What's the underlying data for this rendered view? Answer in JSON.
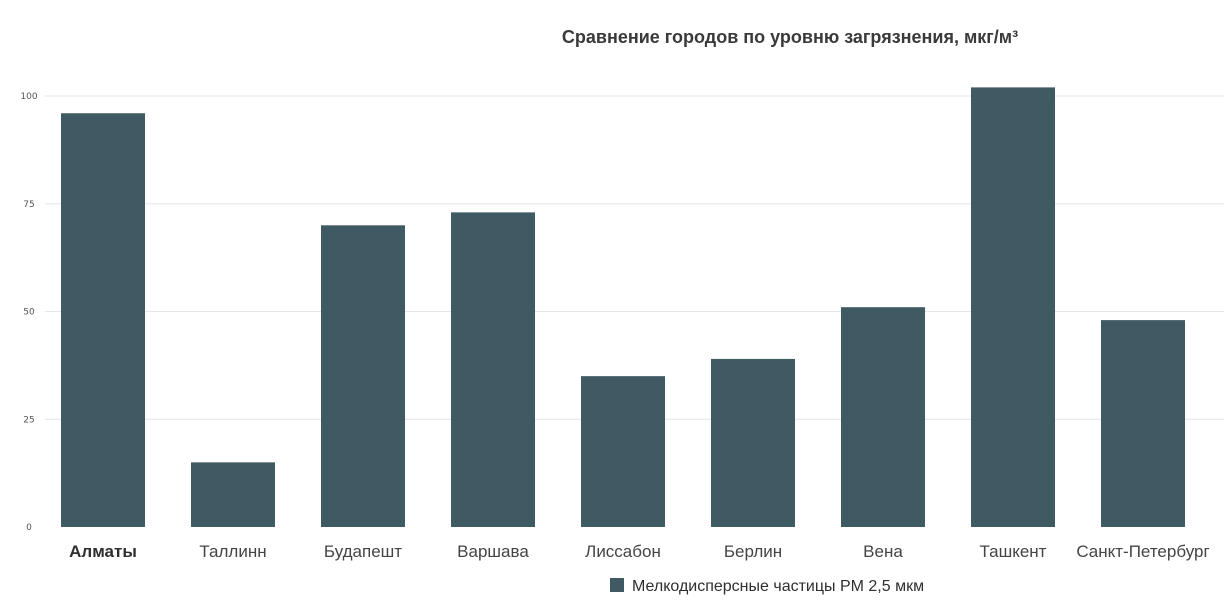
{
  "chart_data": {
    "type": "bar",
    "title": "Сравнение городов по уровню загрязнения, мкг/м³",
    "categories": [
      "Алматы",
      "Таллинн",
      "Будапешт",
      "Варшава",
      "Лиссабон",
      "Берлин",
      "Вена",
      "Ташкент",
      "Санкт-Петербург"
    ],
    "series": [
      {
        "name": "Мелкодисперсные частицы PM 2,5 мкм",
        "values": [
          96,
          15,
          70,
          73,
          35,
          39,
          51,
          102,
          48
        ],
        "color": "#3f5a62"
      }
    ],
    "ylim": [
      0,
      100
    ],
    "yticks": [
      0,
      25,
      50,
      75,
      100
    ],
    "grid": true,
    "legend_position": "bottom",
    "bold_category": "Алматы"
  }
}
